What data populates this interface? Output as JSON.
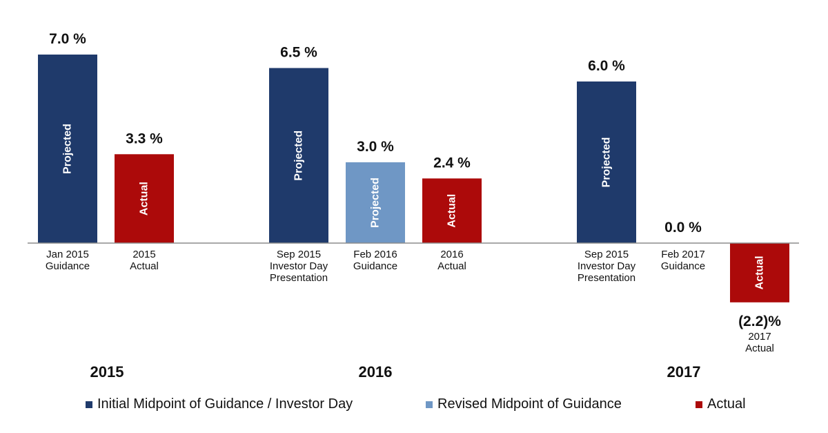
{
  "chart_data": {
    "type": "bar",
    "unit": "%",
    "colors": {
      "initial": "#1f3a6b",
      "revised": "#6f97c5",
      "actual": "#ac0a0a",
      "axis": "#8c8c8c"
    },
    "groups": [
      {
        "year": "2015",
        "bars": [
          {
            "series": "initial",
            "value": 7.0,
            "value_label": "7.0 %",
            "inner_label": "Projected",
            "category": [
              "Jan 2015",
              "Guidance"
            ]
          },
          {
            "series": "actual",
            "value": 3.3,
            "value_label": "3.3 %",
            "inner_label": "Actual",
            "category": [
              "2015",
              "Actual"
            ]
          }
        ]
      },
      {
        "year": "2016",
        "bars": [
          {
            "series": "initial",
            "value": 6.5,
            "value_label": "6.5 %",
            "inner_label": "Projected",
            "category": [
              "Sep 2015",
              "Investor Day",
              "Presentation"
            ]
          },
          {
            "series": "revised",
            "value": 3.0,
            "value_label": "3.0 %",
            "inner_label": "Projected",
            "category": [
              "Feb 2016",
              "Guidance"
            ]
          },
          {
            "series": "actual",
            "value": 2.4,
            "value_label": "2.4 %",
            "inner_label": "Actual",
            "category": [
              "2016",
              "Actual"
            ]
          }
        ]
      },
      {
        "year": "2017",
        "bars": [
          {
            "series": "initial",
            "value": 6.0,
            "value_label": "6.0 %",
            "inner_label": "Projected",
            "category": [
              "Sep 2015",
              "Investor Day",
              "Presentation"
            ]
          },
          {
            "series": "revised",
            "value": 0.0,
            "value_label": "0.0 %",
            "inner_label": "",
            "category": [
              "Feb 2017",
              "Guidance"
            ]
          },
          {
            "series": "actual",
            "value": -2.2,
            "value_label": "(2.2)%",
            "inner_label": "Actual",
            "category": [
              "2017",
              "Actual"
            ]
          }
        ]
      }
    ],
    "legend": [
      {
        "series": "initial",
        "label": "Initial Midpoint of Guidance / Investor Day"
      },
      {
        "series": "revised",
        "label": "Revised Midpoint of Guidance"
      },
      {
        "series": "actual",
        "label": "Actual"
      }
    ],
    "legend_position": "bottom",
    "grid": false
  }
}
